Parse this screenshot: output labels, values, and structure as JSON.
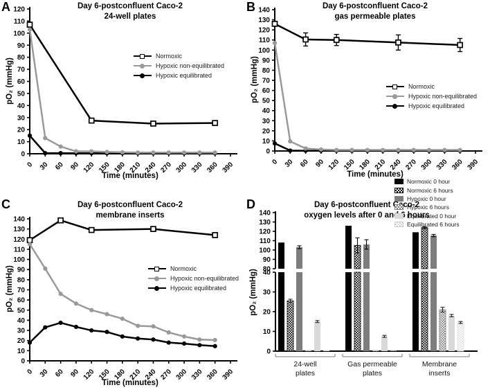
{
  "figure": {
    "background": "#ffffff",
    "black": "#000000",
    "gray_line": "#999999",
    "bar_gray": "#7d7d7d",
    "bar_light_gray": "#d9d9d9",
    "bar_lighter_gray": "#e0e0e0"
  },
  "chart_data": [
    {
      "panel": "A",
      "type": "line",
      "title_line1": "Day 6-postconfluent Caco-2",
      "title_line2": "24-well plates",
      "xlabel": "Time (minutes)",
      "ylabel": "pO₂ (mmHg)",
      "ylim": [
        0,
        120
      ],
      "ytick_step": 10,
      "xticks": [
        0,
        30,
        60,
        90,
        120,
        150,
        180,
        210,
        240,
        270,
        300,
        330,
        360,
        390
      ],
      "grid": false,
      "legend_position": "inside-right",
      "series": [
        {
          "name": "Normoxic",
          "marker": "open-square",
          "color": "#000000",
          "points": [
            [
              0,
              107
            ],
            [
              120,
              27.5
            ],
            [
              240,
              25
            ],
            [
              360,
              25.5
            ]
          ]
        },
        {
          "name": "Hypoxic non-equilibrated",
          "marker": "circle",
          "color": "#999999",
          "points": [
            [
              0,
              103
            ],
            [
              30,
              13
            ],
            [
              60,
              6
            ],
            [
              90,
              2
            ],
            [
              120,
              2
            ],
            [
              150,
              1.5
            ],
            [
              180,
              1.2
            ],
            [
              210,
              1
            ],
            [
              240,
              1
            ],
            [
              270,
              1
            ],
            [
              300,
              1
            ],
            [
              330,
              1
            ],
            [
              360,
              1
            ]
          ]
        },
        {
          "name": "Hypoxic equilibrated",
          "marker": "circle",
          "color": "#000000",
          "points": [
            [
              0,
              15
            ],
            [
              30,
              0.5
            ],
            [
              60,
              0.5
            ],
            [
              90,
              0.4
            ],
            [
              120,
              0.4
            ],
            [
              150,
              0.4
            ],
            [
              180,
              0.4
            ],
            [
              210,
              0.4
            ],
            [
              240,
              0.4
            ],
            [
              270,
              0.4
            ],
            [
              300,
              0.4
            ],
            [
              330,
              0.4
            ],
            [
              360,
              0.4
            ]
          ]
        }
      ]
    },
    {
      "panel": "B",
      "type": "line",
      "title_line1": "Day 6-postconfluent Caco-2",
      "title_line2": "gas permeable plates",
      "xlabel": "Time (minutes)",
      "ylabel": "pO₂ (mmHg)",
      "ylim": [
        0,
        140
      ],
      "ytick_step": 10,
      "xticks": [
        0,
        30,
        60,
        90,
        120,
        150,
        180,
        210,
        240,
        270,
        300,
        330,
        360,
        390
      ],
      "grid": false,
      "legend_position": "inside-right",
      "series": [
        {
          "name": "Normoxic",
          "marker": "open-square",
          "color": "#000000",
          "points": [
            [
              0,
              126
            ],
            [
              60,
              110.5
            ],
            [
              120,
              110
            ],
            [
              240,
              107.5
            ],
            [
              360,
              105
            ]
          ],
          "errors": [
            1.5,
            6.5,
            5.5,
            7.5,
            6.5
          ]
        },
        {
          "name": "Hypoxic non-equilibrated",
          "marker": "circle",
          "color": "#999999",
          "points": [
            [
              0,
              107
            ],
            [
              30,
              9.5
            ],
            [
              60,
              2.5
            ],
            [
              90,
              1.5
            ],
            [
              120,
              1
            ],
            [
              150,
              1
            ],
            [
              180,
              1
            ],
            [
              210,
              1
            ],
            [
              240,
              1
            ],
            [
              270,
              1
            ],
            [
              300,
              1
            ],
            [
              330,
              1
            ],
            [
              360,
              1
            ]
          ]
        },
        {
          "name": "Hypoxic equilibrated",
          "marker": "circle",
          "color": "#000000",
          "points": [
            [
              0,
              7.5
            ],
            [
              30,
              0.4
            ],
            [
              60,
              0.3
            ],
            [
              90,
              0.3
            ],
            [
              120,
              0.3
            ],
            [
              150,
              0.3
            ],
            [
              180,
              0.3
            ],
            [
              210,
              0.3
            ],
            [
              240,
              0.3
            ],
            [
              270,
              0.3
            ],
            [
              300,
              0.3
            ],
            [
              330,
              0.3
            ],
            [
              360,
              0.3
            ]
          ]
        }
      ]
    },
    {
      "panel": "C",
      "type": "line",
      "title_line1": "Day 6-postconfluent Caco-2",
      "title_line2": "membrane inserts",
      "xlabel": "Time (minutes)",
      "ylabel": "pO₂ (mmHg)",
      "ylim": [
        0,
        140
      ],
      "ytick_step": 10,
      "xticks": [
        0,
        30,
        60,
        90,
        120,
        150,
        180,
        210,
        240,
        270,
        300,
        330,
        360,
        390
      ],
      "grid": false,
      "legend_position": "inside-right",
      "series": [
        {
          "name": "Normoxic",
          "marker": "open-square",
          "color": "#000000",
          "points": [
            [
              0,
              119
            ],
            [
              60,
              138.5
            ],
            [
              120,
              129
            ],
            [
              240,
              130
            ],
            [
              360,
              124
            ]
          ]
        },
        {
          "name": "Hypoxic non-equilibrated",
          "marker": "circle",
          "color": "#999999",
          "points": [
            [
              0,
              115
            ],
            [
              30,
              91
            ],
            [
              60,
              66
            ],
            [
              90,
              56.5
            ],
            [
              120,
              50
            ],
            [
              150,
              46
            ],
            [
              180,
              41.5
            ],
            [
              210,
              34.5
            ],
            [
              240,
              34
            ],
            [
              270,
              28
            ],
            [
              300,
              24
            ],
            [
              330,
              21
            ],
            [
              360,
              20.5
            ]
          ]
        },
        {
          "name": "Hypoxic equilibrated",
          "marker": "circle",
          "color": "#000000",
          "points": [
            [
              0,
              18
            ],
            [
              30,
              33
            ],
            [
              60,
              37.5
            ],
            [
              90,
              33.5
            ],
            [
              120,
              30
            ],
            [
              150,
              28.5
            ],
            [
              180,
              24
            ],
            [
              210,
              22
            ],
            [
              240,
              21
            ],
            [
              270,
              18
            ],
            [
              300,
              17
            ],
            [
              330,
              15.5
            ],
            [
              360,
              14.5
            ]
          ]
        }
      ]
    },
    {
      "panel": "D",
      "type": "bar",
      "broken_axis": true,
      "title_line1": "Day 6-postconfluent Caco-2",
      "title_line2": "oxygen levels after 0 and 6 hours",
      "ylabel": "pO₂ (mmHg)",
      "axis_top": {
        "ylim": [
          80,
          140
        ],
        "ytick_step": 10
      },
      "axis_bottom": {
        "ylim": [
          0,
          40
        ],
        "ytick_step": 10
      },
      "grid": false,
      "legend_position": "outside-top-right",
      "groups": [
        {
          "line1": "24-well",
          "line2": "plates"
        },
        {
          "line1": "Gas permeable",
          "line2": "plates"
        },
        {
          "line1": "Membrane",
          "line2": "inserts"
        }
      ],
      "series": [
        {
          "name": "Normoxic 0 hour",
          "fill": "#000000",
          "pattern": false,
          "values": [
            108,
            126,
            119
          ],
          "errors": [
            0,
            0,
            0
          ]
        },
        {
          "name": "Normoxic 6 hours",
          "fill": "#000000",
          "pattern": true,
          "values": [
            25.5,
            105,
            124
          ],
          "errors": [
            0.8,
            8,
            1
          ]
        },
        {
          "name": "Hypoxic 0 hour",
          "fill": "#7d7d7d",
          "pattern": false,
          "values": [
            103,
            106,
            115.5
          ],
          "errors": [
            1.5,
            5,
            1.2
          ]
        },
        {
          "name": "Hypoxic 6 hours",
          "fill": "#7d7d7d",
          "pattern": true,
          "values": [
            0.5,
            0.5,
            21
          ],
          "errors": [
            0,
            0,
            1.2
          ]
        },
        {
          "name": "Equilibrated 0 hour",
          "fill": "#d9d9d9",
          "pattern": false,
          "values": [
            15,
            7.5,
            18
          ],
          "errors": [
            0.5,
            0.5,
            0.6
          ]
        },
        {
          "name": "Equilibrated 6 hours",
          "fill": "#e0e0e0",
          "pattern": true,
          "values": [
            0.3,
            0.2,
            14.5
          ],
          "errors": [
            0,
            0,
            0.5
          ]
        }
      ]
    }
  ]
}
